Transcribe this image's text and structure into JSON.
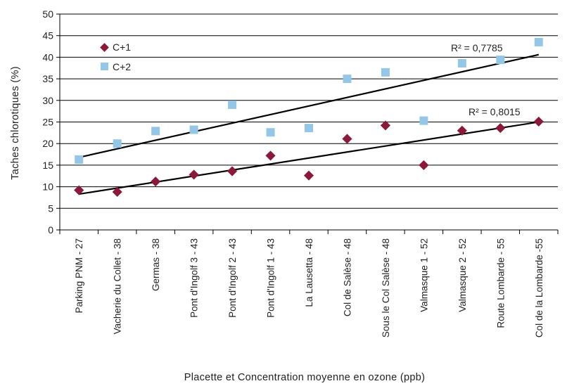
{
  "chart_data": {
    "type": "scatter",
    "xlabel": "Placette et Concentration moyenne en ozone (ppb)",
    "ylabel": "Taches chlorotiques  (%)",
    "ylim": [
      0,
      50
    ],
    "yticks": [
      0,
      5,
      10,
      15,
      20,
      25,
      30,
      35,
      40,
      45,
      50
    ],
    "grid": true,
    "legend_position": "top-left",
    "categories": [
      "Parking PNM - 27",
      "Vacherie du Collet - 38",
      "Germas - 38",
      "Pont d'Ingolf 3 - 43",
      "Pont d'Ingolf 2 - 43",
      "Pont d'Ingolf 1 - 43",
      "La Lausetta - 48",
      "Col de Salèse - 48",
      "Sous le Col Salèse - 48",
      "Valmasque 1 - 52",
      "Valmasque 2 - 52",
      "Route Lombarde - 55",
      "Col de la Lombarde -55"
    ],
    "series": [
      {
        "name": "C+1",
        "marker": "diamond",
        "color": "#8b1a3a",
        "values": [
          9.2,
          8.8,
          11.2,
          12.8,
          13.6,
          17.2,
          12.6,
          21.1,
          24.2,
          15.0,
          23.0,
          23.6,
          25.1
        ],
        "trendline": {
          "start": 8.3,
          "end": 25.0,
          "r2_label": "R² = 0,8015"
        }
      },
      {
        "name": "C+2",
        "marker": "square",
        "color": "#94c6e8",
        "values": [
          16.3,
          20.0,
          22.9,
          23.2,
          29.0,
          22.6,
          23.6,
          35.0,
          36.5,
          25.3,
          38.6,
          39.4,
          43.5
        ],
        "trendline": {
          "start": 16.8,
          "end": 40.6,
          "r2_label": "R² = 0,7785"
        }
      }
    ]
  }
}
